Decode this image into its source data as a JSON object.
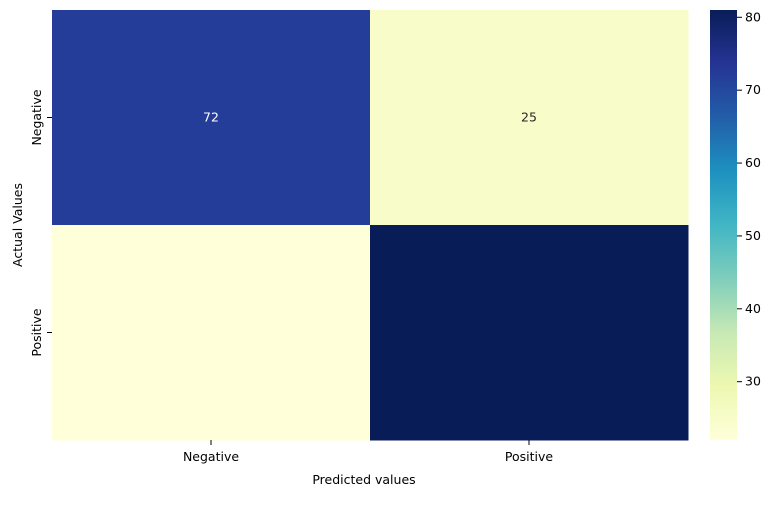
{
  "chart_data": {
    "type": "heatmap",
    "xlabel": "Predicted values",
    "ylabel": "Actual Values",
    "x_categories": [
      "Negative",
      "Positive"
    ],
    "y_categories": [
      "Negative",
      "Positive"
    ],
    "values": [
      [
        72,
        25
      ],
      [
        22,
        81
      ]
    ],
    "annotations": [
      [
        "72",
        "25"
      ],
      [
        "",
        ""
      ]
    ],
    "colorbar": {
      "range": [
        22,
        81
      ],
      "ticks": [
        30,
        40,
        50,
        60,
        70,
        80
      ],
      "colormap": "YlGnBu"
    }
  },
  "colors": {
    "colormap_stops": [
      "#ffffd9",
      "#edf8b1",
      "#c7e9b4",
      "#7fcdbb",
      "#41b6c4",
      "#1d91c0",
      "#225ea8",
      "#253494",
      "#081d58"
    ]
  }
}
